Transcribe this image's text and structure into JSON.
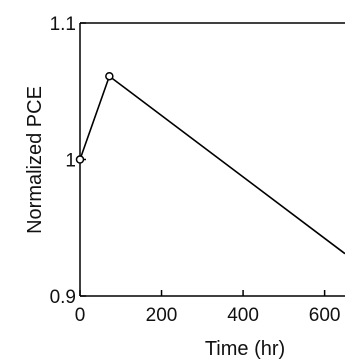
{
  "chart_data": {
    "type": "line",
    "title": "",
    "xlabel": "Time (hr)",
    "ylabel": "Normalized PCE",
    "xlim": [
      0,
      650
    ],
    "ylim": [
      0.9,
      1.1
    ],
    "x_ticks": [
      0,
      200,
      400,
      600
    ],
    "x_tick_labels": [
      "0",
      "200",
      "400",
      "600"
    ],
    "y_ticks": [
      0.9,
      1.0,
      1.1
    ],
    "y_tick_labels": [
      "0.9",
      "1",
      "1.1"
    ],
    "grid": false,
    "legend": "none",
    "series": [
      {
        "x": [
          0,
          72,
          650
        ],
        "y": [
          1.0,
          1.061,
          0.931
        ],
        "markers": [
          true,
          true,
          false
        ],
        "color": "#000000"
      }
    ]
  }
}
